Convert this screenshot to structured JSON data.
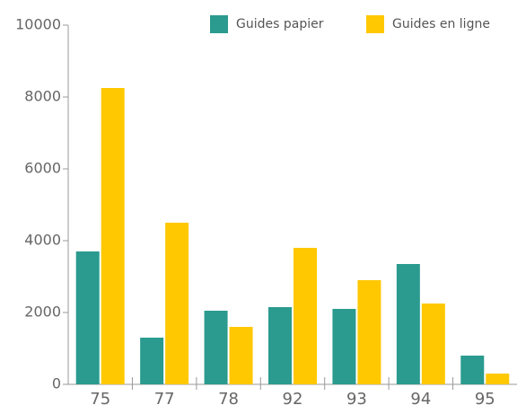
{
  "chart_data": {
    "type": "bar",
    "categories": [
      "75",
      "77",
      "78",
      "92",
      "93",
      "94",
      "95"
    ],
    "series": [
      {
        "name": "Guides papier",
        "color": "#2a9b8e",
        "values": [
          3700,
          1300,
          2050,
          2150,
          2100,
          3350,
          800
        ]
      },
      {
        "name": "Guides en ligne",
        "color": "#ffc800",
        "values": [
          8250,
          4500,
          1600,
          3800,
          2900,
          2250,
          300
        ]
      }
    ],
    "ylim": [
      0,
      10000
    ],
    "yticks": [
      0,
      2000,
      4000,
      6000,
      8000,
      10000
    ],
    "legend": "top-right"
  }
}
